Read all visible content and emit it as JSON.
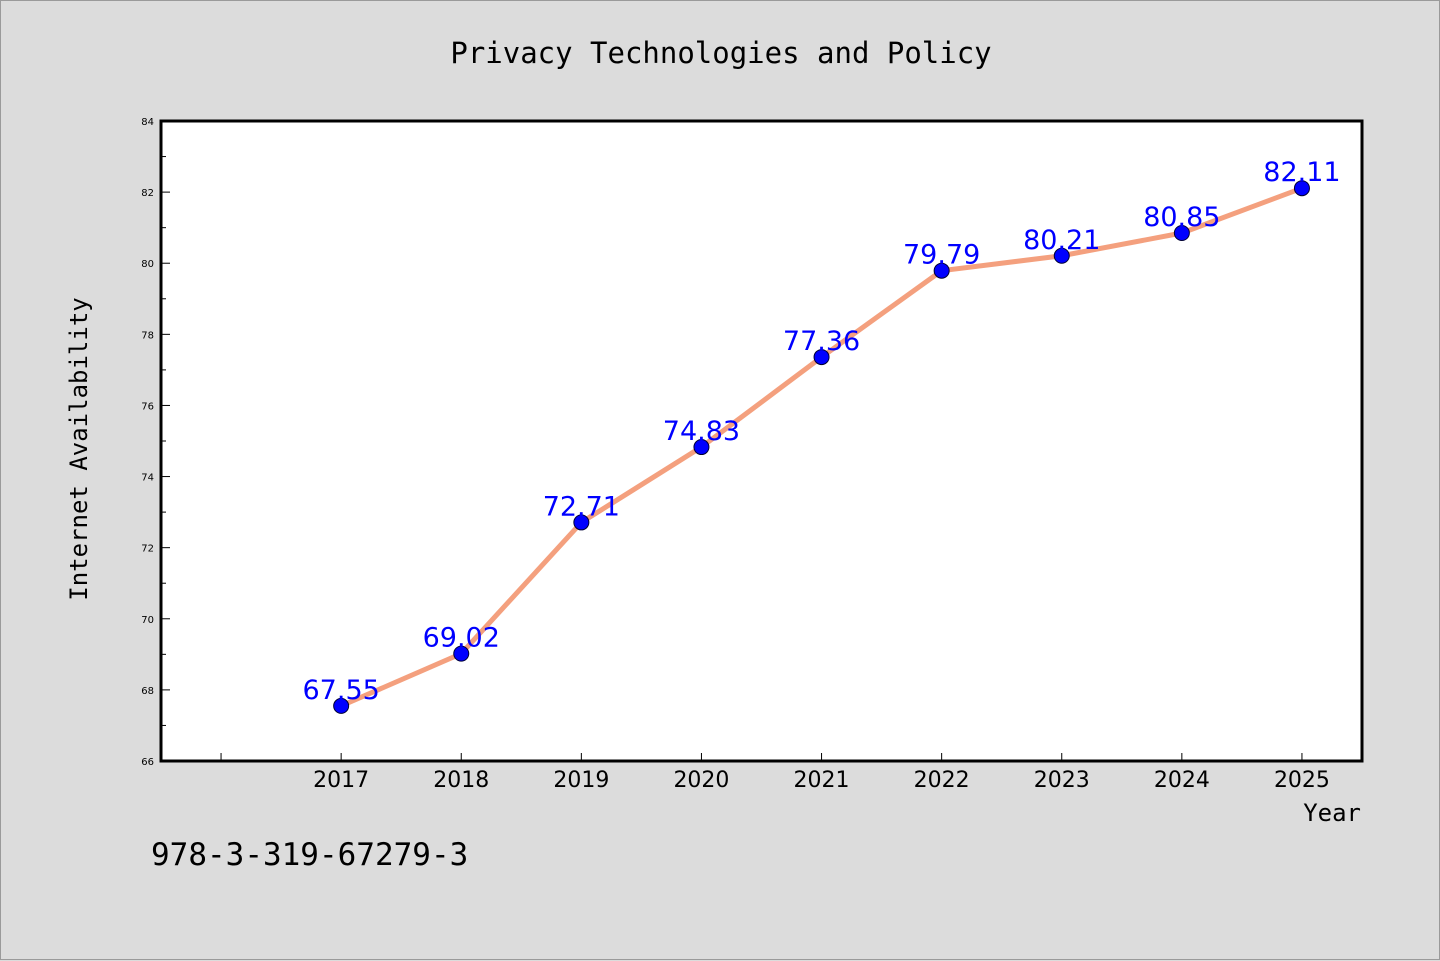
{
  "chart_data": {
    "type": "line",
    "title": "Privacy Technologies and Policy",
    "xlabel": "Year",
    "ylabel": "Internet Availability",
    "annotation": "978-3-319-67279-3",
    "categories": [
      "2017",
      "2018",
      "2019",
      "2020",
      "2021",
      "2022",
      "2023",
      "2024",
      "2025"
    ],
    "values": [
      67.55,
      69.02,
      72.71,
      74.83,
      77.36,
      79.79,
      80.21,
      80.85,
      82.11
    ],
    "value_labels": [
      "67.55",
      "69.02",
      "72.71",
      "74.83",
      "77.36",
      "79.79",
      "80.21",
      "80.85",
      "82.11"
    ],
    "xlim": [
      2015.5,
      2025.5
    ],
    "ylim": [
      66,
      84
    ],
    "yticks": [
      "66",
      "68",
      "70",
      "72",
      "74",
      "76",
      "78",
      "80",
      "82",
      "84"
    ],
    "grid": false,
    "legend": "none",
    "colors": {
      "background": "#dcdcdc",
      "plot_background": "#ffffff",
      "line": "#f4a07e",
      "marker": "#0000ff",
      "data_label": "#0000ff",
      "axis": "#000000"
    }
  }
}
